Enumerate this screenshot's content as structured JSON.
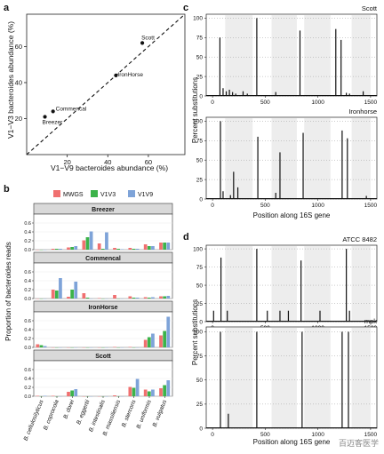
{
  "panel_labels": {
    "a": "a",
    "b": "b",
    "c": "c",
    "d": "d"
  },
  "chart_data": [
    {
      "panel": "a",
      "type": "scatter",
      "xlabel": "V1−V9 bacteroides abundance (%)",
      "ylabel": "V1−V3 bacteroides abundance (%)",
      "xlim": [
        0,
        78
      ],
      "ylim": [
        0,
        78
      ],
      "xticks": [
        "20",
        "40",
        "60"
      ],
      "yticks": [
        "20",
        "40",
        "60"
      ],
      "reference_line": "y = x (dashed)",
      "points": [
        {
          "label": "Scott",
          "x": 57,
          "y": 62
        },
        {
          "label": "IronHorse",
          "x": 44,
          "y": 44
        },
        {
          "label": "Commencal",
          "x": 13,
          "y": 24
        },
        {
          "label": "Breezer",
          "x": 9,
          "y": 21
        }
      ]
    },
    {
      "panel": "b",
      "type": "bar",
      "ylabel": "Proportion of bacteroides reads",
      "legend": [
        "MWGS",
        "V1V3",
        "V1V9"
      ],
      "legend_position": "top",
      "ylim": [
        0,
        0.8
      ],
      "yticks": [
        "0.0",
        "0.2",
        "0.4",
        "0.6"
      ],
      "categories": [
        "B. cellulosilyticus",
        "B. coprocola",
        "B. dorei",
        "B. eggertii",
        "B. intestinalis",
        "B. massiliensis",
        "B. stercoris",
        "B. uniformis",
        "B. vulgatus"
      ],
      "facets": [
        {
          "name": "Breezer",
          "series": [
            {
              "name": "MWGS",
              "values": [
                0.0,
                0.02,
                0.05,
                0.21,
                0.14,
                0.04,
                0.04,
                0.12,
                0.16
              ]
            },
            {
              "name": "V1V3",
              "values": [
                0.0,
                0.02,
                0.06,
                0.28,
                0.02,
                0.02,
                0.02,
                0.08,
                0.16
              ]
            },
            {
              "name": "V1V9",
              "values": [
                0.0,
                0.02,
                0.08,
                0.41,
                0.39,
                0.01,
                0.02,
                0.08,
                0.16
              ]
            }
          ]
        },
        {
          "name": "Commencal",
          "series": [
            {
              "name": "MWGS",
              "values": [
                0.0,
                0.2,
                0.04,
                0.12,
                0.01,
                0.08,
                0.05,
                0.03,
                0.05
              ]
            },
            {
              "name": "V1V3",
              "values": [
                0.0,
                0.18,
                0.2,
                0.02,
                0.0,
                0.0,
                0.02,
                0.02,
                0.05
              ]
            },
            {
              "name": "V1V9",
              "values": [
                0.0,
                0.46,
                0.38,
                0.0,
                0.0,
                0.0,
                0.02,
                0.03,
                0.06
              ]
            }
          ]
        },
        {
          "name": "IronHorse",
          "series": [
            {
              "name": "MWGS",
              "values": [
                0.07,
                0.0,
                0.0,
                0.0,
                0.0,
                0.01,
                0.01,
                0.17,
                0.27
              ]
            },
            {
              "name": "V1V3",
              "values": [
                0.05,
                0.0,
                0.0,
                0.0,
                0.0,
                0.0,
                0.0,
                0.23,
                0.37
              ]
            },
            {
              "name": "V1V9",
              "values": [
                0.03,
                0.0,
                0.0,
                0.0,
                0.0,
                0.0,
                0.0,
                0.31,
                0.69
              ]
            }
          ]
        },
        {
          "name": "Scott",
          "series": [
            {
              "name": "MWGS",
              "values": [
                0.01,
                0.01,
                0.1,
                0.0,
                0.0,
                0.02,
                0.21,
                0.15,
                0.18
              ]
            },
            {
              "name": "V1V3",
              "values": [
                0.0,
                0.0,
                0.13,
                0.0,
                0.0,
                0.0,
                0.19,
                0.11,
                0.25
              ]
            },
            {
              "name": "V1V9",
              "values": [
                0.01,
                0.0,
                0.16,
                0.0,
                0.0,
                0.0,
                0.39,
                0.15,
                0.36
              ]
            }
          ]
        }
      ]
    },
    {
      "panel": "c",
      "type": "bar",
      "xlabel": "Position along 16S gene",
      "ylabel": "Percent substitutions",
      "xlim": [
        -60,
        1560
      ],
      "ylim": [
        0,
        105
      ],
      "xticks": [
        "0",
        "500",
        "1000",
        "1500"
      ],
      "yticks": [
        "0",
        "25",
        "50",
        "75",
        "100"
      ],
      "facets": [
        {
          "name": "Scott",
          "positions": [
            70,
            100,
            130,
            160,
            190,
            220,
            290,
            330,
            420,
            600,
            830,
            1170,
            1220,
            1270,
            1300,
            1430
          ],
          "values": [
            75,
            10,
            6,
            8,
            5,
            3,
            6,
            3,
            100,
            5,
            84,
            86,
            72,
            4,
            3,
            6
          ]
        },
        {
          "name": "Ironhorse",
          "positions": [
            75,
            100,
            170,
            200,
            240,
            430,
            600,
            640,
            860,
            1230,
            1280,
            1460
          ],
          "values": [
            100,
            10,
            5,
            35,
            15,
            80,
            8,
            60,
            85,
            88,
            78,
            4
          ]
        }
      ]
    },
    {
      "panel": "d",
      "type": "bar",
      "xlabel": "Position along 16S gene",
      "ylabel": "Percent substitutions",
      "xlim": [
        -60,
        1560
      ],
      "ylim": [
        0,
        105
      ],
      "xticks": [
        "0",
        "500",
        "1000",
        "1500"
      ],
      "yticks": [
        "0",
        "25",
        "50",
        "75",
        "100"
      ],
      "facets": [
        {
          "name": "ATCC 8482",
          "positions": [
            10,
            80,
            140,
            420,
            520,
            640,
            720,
            840,
            1020,
            1270,
            1300
          ],
          "values": [
            15,
            88,
            15,
            100,
            15,
            15,
            15,
            84,
            15,
            100,
            15
          ]
        },
        {
          "name": "mpk",
          "positions": [
            75,
            150,
            420,
            850,
            1230,
            1290
          ],
          "values": [
            100,
            15,
            100,
            100,
            100,
            100
          ]
        }
      ]
    }
  ],
  "watermark": "百迈客医学"
}
